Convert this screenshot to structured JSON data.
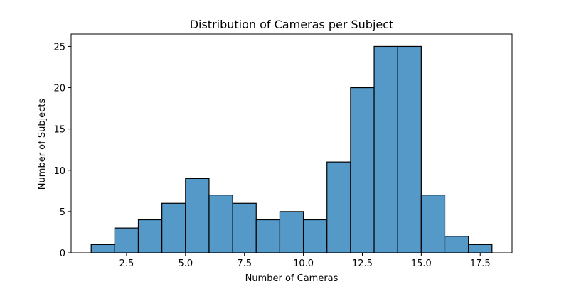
{
  "chart_data": {
    "type": "bar",
    "title": "Distribution of Cameras per Subject",
    "xlabel": "Number of Cameras",
    "ylabel": "Number of Subjects",
    "bin_width": 1,
    "bins": [
      {
        "start": 1,
        "end": 2,
        "count": 1
      },
      {
        "start": 2,
        "end": 3,
        "count": 3
      },
      {
        "start": 3,
        "end": 4,
        "count": 4
      },
      {
        "start": 4,
        "end": 5,
        "count": 6
      },
      {
        "start": 5,
        "end": 6,
        "count": 9
      },
      {
        "start": 6,
        "end": 7,
        "count": 7
      },
      {
        "start": 7,
        "end": 8,
        "count": 6
      },
      {
        "start": 8,
        "end": 9,
        "count": 4
      },
      {
        "start": 9,
        "end": 10,
        "count": 5
      },
      {
        "start": 10,
        "end": 11,
        "count": 4
      },
      {
        "start": 11,
        "end": 12,
        "count": 11
      },
      {
        "start": 12,
        "end": 13,
        "count": 20
      },
      {
        "start": 13,
        "end": 14,
        "count": 25
      },
      {
        "start": 14,
        "end": 15,
        "count": 25
      },
      {
        "start": 15,
        "end": 16,
        "count": 7
      },
      {
        "start": 16,
        "end": 17,
        "count": 2
      },
      {
        "start": 17,
        "end": 18,
        "count": 1
      }
    ],
    "xlim": [
      0.15,
      18.85
    ],
    "ylim": [
      0,
      26.5
    ],
    "xticks": [
      "2.5",
      "5.0",
      "7.5",
      "10.0",
      "12.5",
      "15.0",
      "17.5"
    ],
    "yticks": [
      "0",
      "5",
      "10",
      "15",
      "20",
      "25"
    ],
    "grid": false,
    "legend": "none",
    "colors": {
      "bar_fill": "#5499c8",
      "bar_edge": "#000000"
    }
  }
}
